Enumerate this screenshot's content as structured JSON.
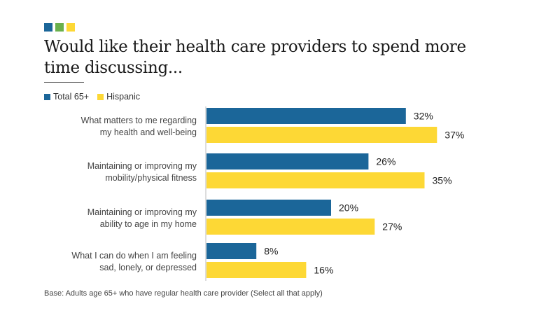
{
  "brand_colors": [
    "#1b6699",
    "#6ab04c",
    "#fdd835"
  ],
  "header": {
    "title_line1": "Would like their health care providers to spend more",
    "title_line2": "time discussing..."
  },
  "footnote": "Base: Adults age 65+ who have regular health care provider (Select all that apply)",
  "chart_data": {
    "type": "bar",
    "orientation": "horizontal",
    "title": "Would like their health care providers to spend more time discussing...",
    "xlabel": "",
    "ylabel": "",
    "xlim": [
      0,
      40
    ],
    "grid": false,
    "legend_position": "top-left",
    "categories": [
      [
        "What matters to me regarding",
        "my health and well-being"
      ],
      [
        "Maintaining or improving my",
        "mobility/physical fitness"
      ],
      [
        "Maintaining or improving my",
        "ability to age in my home"
      ],
      [
        "What I can do when I am feeling",
        "sad, lonely, or depressed"
      ]
    ],
    "series": [
      {
        "name": "Total 65+",
        "color": "#1b6699",
        "values": [
          32,
          26,
          20,
          8
        ]
      },
      {
        "name": "Hispanic",
        "color": "#fdd835",
        "values": [
          37,
          35,
          27,
          16
        ]
      }
    ],
    "value_suffix": "%"
  }
}
